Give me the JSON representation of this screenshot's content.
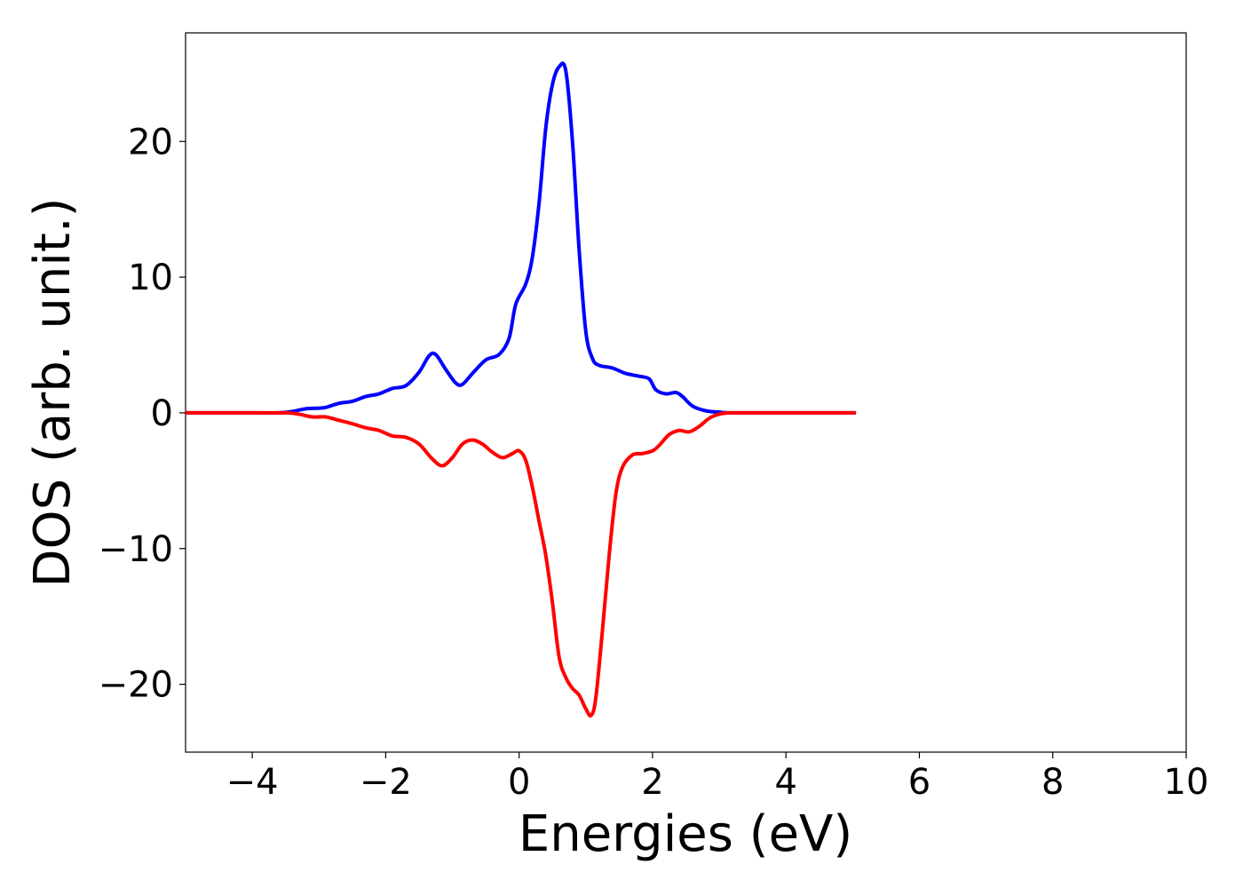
{
  "chart_data": {
    "type": "line",
    "title": "",
    "xlabel": "Energies (eV)",
    "ylabel": "DOS (arb. unit.)",
    "xlim": [
      -5,
      10
    ],
    "ylim": [
      -25,
      28
    ],
    "xticks": [
      -4,
      -2,
      0,
      2,
      4,
      6,
      8,
      10
    ],
    "xtick_labels": [
      "−4",
      "−2",
      "0",
      "2",
      "4",
      "6",
      "8",
      "10"
    ],
    "yticks": [
      -20,
      -10,
      0,
      10,
      20
    ],
    "ytick_labels": [
      "−20",
      "−10",
      "0",
      "10",
      "20"
    ],
    "grid": false,
    "legend": "none",
    "series": [
      {
        "color": "#0000ff",
        "points": [
          [
            -5.0,
            0
          ],
          [
            -4.0,
            0
          ],
          [
            -3.6,
            0
          ],
          [
            -3.4,
            0.1
          ],
          [
            -3.2,
            0.3
          ],
          [
            -3.0,
            0.35
          ],
          [
            -2.9,
            0.4
          ],
          [
            -2.7,
            0.7
          ],
          [
            -2.5,
            0.85
          ],
          [
            -2.3,
            1.2
          ],
          [
            -2.1,
            1.4
          ],
          [
            -1.9,
            1.8
          ],
          [
            -1.7,
            2.0
          ],
          [
            -1.5,
            3.0
          ],
          [
            -1.35,
            4.2
          ],
          [
            -1.25,
            4.3
          ],
          [
            -1.1,
            3.2
          ],
          [
            -0.95,
            2.2
          ],
          [
            -0.85,
            2.1
          ],
          [
            -0.7,
            2.9
          ],
          [
            -0.5,
            3.9
          ],
          [
            -0.3,
            4.3
          ],
          [
            -0.15,
            5.5
          ],
          [
            -0.05,
            8.0
          ],
          [
            0.1,
            9.5
          ],
          [
            0.2,
            11.5
          ],
          [
            0.3,
            15.5
          ],
          [
            0.4,
            21.0
          ],
          [
            0.5,
            24.2
          ],
          [
            0.6,
            25.5
          ],
          [
            0.7,
            25.2
          ],
          [
            0.8,
            20.0
          ],
          [
            0.9,
            12.0
          ],
          [
            1.0,
            6.0
          ],
          [
            1.1,
            4.0
          ],
          [
            1.2,
            3.5
          ],
          [
            1.4,
            3.3
          ],
          [
            1.6,
            2.9
          ],
          [
            1.8,
            2.7
          ],
          [
            1.95,
            2.5
          ],
          [
            2.05,
            1.7
          ],
          [
            2.2,
            1.4
          ],
          [
            2.35,
            1.5
          ],
          [
            2.45,
            1.2
          ],
          [
            2.6,
            0.5
          ],
          [
            2.8,
            0.15
          ],
          [
            3.0,
            0.05
          ],
          [
            3.2,
            0
          ],
          [
            4.0,
            0
          ],
          [
            5.05,
            0
          ]
        ]
      },
      {
        "color": "#ff0000",
        "points": [
          [
            -5.0,
            0
          ],
          [
            -4.0,
            0
          ],
          [
            -3.5,
            0
          ],
          [
            -3.3,
            -0.1
          ],
          [
            -3.1,
            -0.3
          ],
          [
            -2.9,
            -0.3
          ],
          [
            -2.7,
            -0.55
          ],
          [
            -2.5,
            -0.8
          ],
          [
            -2.3,
            -1.1
          ],
          [
            -2.1,
            -1.3
          ],
          [
            -1.9,
            -1.7
          ],
          [
            -1.7,
            -1.8
          ],
          [
            -1.5,
            -2.3
          ],
          [
            -1.3,
            -3.4
          ],
          [
            -1.15,
            -3.9
          ],
          [
            -1.0,
            -3.3
          ],
          [
            -0.85,
            -2.3
          ],
          [
            -0.7,
            -2.0
          ],
          [
            -0.55,
            -2.3
          ],
          [
            -0.4,
            -2.9
          ],
          [
            -0.25,
            -3.3
          ],
          [
            -0.1,
            -3.0
          ],
          [
            0.0,
            -2.8
          ],
          [
            0.1,
            -3.5
          ],
          [
            0.2,
            -5.5
          ],
          [
            0.3,
            -8.0
          ],
          [
            0.4,
            -10.5
          ],
          [
            0.5,
            -14.0
          ],
          [
            0.6,
            -18.0
          ],
          [
            0.7,
            -19.5
          ],
          [
            0.8,
            -20.3
          ],
          [
            0.9,
            -20.8
          ],
          [
            1.0,
            -21.8
          ],
          [
            1.08,
            -22.3
          ],
          [
            1.15,
            -21.0
          ],
          [
            1.25,
            -16.0
          ],
          [
            1.35,
            -10.5
          ],
          [
            1.45,
            -6.0
          ],
          [
            1.55,
            -4.0
          ],
          [
            1.7,
            -3.1
          ],
          [
            1.85,
            -3.0
          ],
          [
            2.0,
            -2.8
          ],
          [
            2.1,
            -2.4
          ],
          [
            2.25,
            -1.6
          ],
          [
            2.4,
            -1.3
          ],
          [
            2.55,
            -1.4
          ],
          [
            2.7,
            -1.0
          ],
          [
            2.85,
            -0.4
          ],
          [
            3.0,
            -0.1
          ],
          [
            3.2,
            0
          ],
          [
            4.0,
            0
          ],
          [
            5.05,
            0
          ]
        ]
      }
    ]
  }
}
